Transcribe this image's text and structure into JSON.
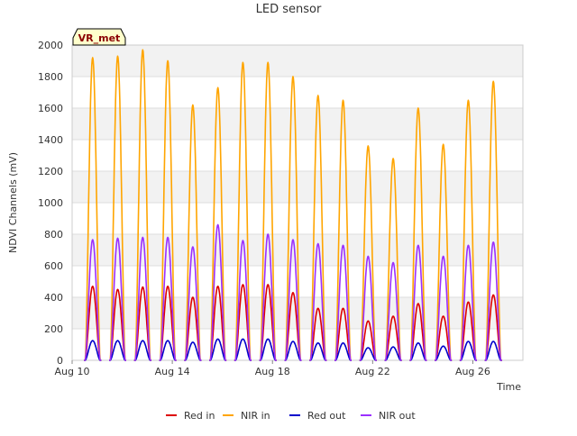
{
  "chart_data": {
    "type": "line",
    "title": "LED sensor",
    "xlabel": "Time",
    "ylabel": "NDVI Channels (mV)",
    "annotation": "VR_met",
    "ylim": [
      0,
      2000
    ],
    "yticks": [
      0,
      200,
      400,
      600,
      800,
      1000,
      1200,
      1400,
      1600,
      1800,
      2000
    ],
    "xlim": [
      "2024-08-10",
      "2024-08-28"
    ],
    "xticks": [
      {
        "date": "2024-08-10",
        "label": "Aug 10"
      },
      {
        "date": "2024-08-14",
        "label": "Aug 14"
      },
      {
        "date": "2024-08-18",
        "label": "Aug 18"
      },
      {
        "date": "2024-08-22",
        "label": "Aug 22"
      },
      {
        "date": "2024-08-26",
        "label": "Aug 26"
      }
    ],
    "grid": true,
    "legend_position": "bottom",
    "day_centers": [
      "2024-08-10 19:40",
      "2024-08-11 19:40",
      "2024-08-12 19:40",
      "2024-08-13 19:40",
      "2024-08-14 19:40",
      "2024-08-15 19:40",
      "2024-08-16 19:40",
      "2024-08-17 19:40",
      "2024-08-18 19:40",
      "2024-08-19 19:40",
      "2024-08-20 19:40",
      "2024-08-21 19:40",
      "2024-08-22 19:40",
      "2024-08-23 19:40",
      "2024-08-24 19:40",
      "2024-08-25 19:40",
      "2024-08-26 19:40"
    ],
    "series": [
      {
        "name": "Red in",
        "color": "#dd0000",
        "daily_peaks": [
          470,
          450,
          465,
          470,
          400,
          470,
          480,
          480,
          430,
          330,
          330,
          250,
          280,
          360,
          280,
          370,
          415
        ]
      },
      {
        "name": "NIR in",
        "color": "#ffa500",
        "daily_peaks": [
          1920,
          1930,
          1970,
          1900,
          1620,
          1730,
          1890,
          1890,
          1800,
          1680,
          1650,
          1360,
          1280,
          1600,
          1370,
          1650,
          1770
        ]
      },
      {
        "name": "Red out",
        "color": "#0000cc",
        "daily_peaks": [
          125,
          125,
          125,
          125,
          115,
          135,
          135,
          135,
          120,
          110,
          110,
          80,
          85,
          110,
          90,
          120,
          120
        ]
      },
      {
        "name": "NIR out",
        "color": "#9b30ff",
        "daily_peaks": [
          765,
          775,
          780,
          780,
          720,
          860,
          760,
          800,
          765,
          740,
          730,
          660,
          620,
          730,
          660,
          730,
          750
        ]
      }
    ]
  }
}
